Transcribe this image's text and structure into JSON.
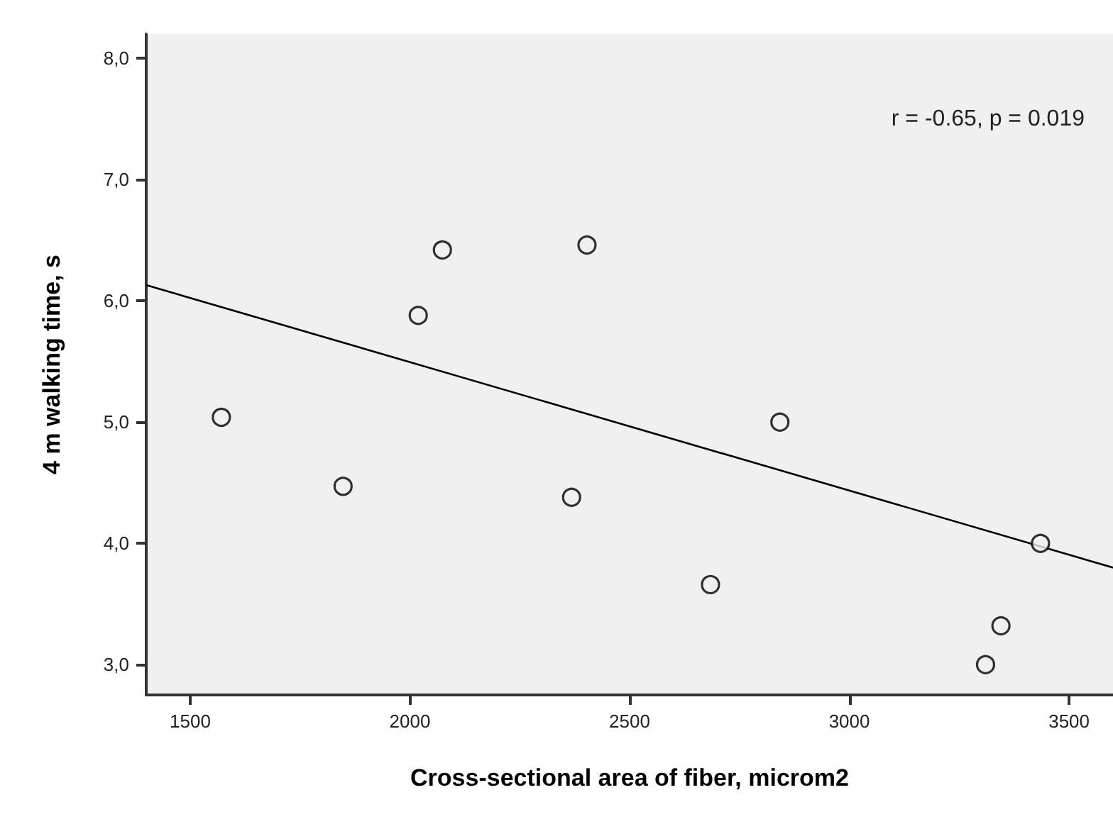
{
  "chart_data": {
    "type": "scatter",
    "xlabel": "Cross-sectional area of fiber, microm2",
    "ylabel": "4 m walking time, s",
    "annotations": [
      "r = -0.65, p = 0.019"
    ],
    "series": [
      {
        "color": "#000000",
        "marker": "circle",
        "x": [
          1571,
          1848,
          2019,
          2074,
          2368,
          2403,
          2684,
          2842,
          3310,
          3345,
          3435
        ],
        "values": [
          5.04,
          4.47,
          5.88,
          6.42,
          4.38,
          6.46,
          3.66,
          5.0,
          3.0,
          3.32,
          4.0
        ]
      },
      {
        "type": "line",
        "color": "#000000",
        "marker": "none",
        "line_style": "solid",
        "x": [
          1400,
          3600
        ],
        "values": [
          6.13,
          3.8
        ]
      }
    ],
    "xlim": [
      1400,
      3600
    ],
    "xticks": [
      1500,
      2000,
      2500,
      3000,
      3500
    ],
    "ylim": [
      2.75,
      8.2
    ],
    "yticks": [
      {
        "value": 3,
        "label": "3,0"
      },
      {
        "value": 4,
        "label": "4,0"
      },
      {
        "value": 5,
        "label": "5,0"
      },
      {
        "value": 6,
        "label": "6,0"
      },
      {
        "value": 7,
        "label": "7,0"
      },
      {
        "value": 8,
        "label": "8,0"
      }
    ],
    "grid": false
  }
}
